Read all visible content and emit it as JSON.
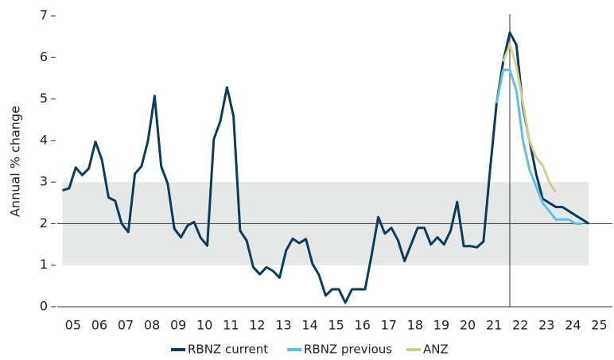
{
  "chart_data": {
    "type": "line",
    "y_label": "Annual % change",
    "x": [
      2005,
      2005.25,
      2005.5,
      2005.75,
      2006,
      2006.25,
      2006.5,
      2006.75,
      2007,
      2007.25,
      2007.5,
      2007.75,
      2008,
      2008.25,
      2008.5,
      2008.75,
      2009,
      2009.25,
      2009.5,
      2009.75,
      2010,
      2010.25,
      2010.5,
      2010.75,
      2011,
      2011.25,
      2011.5,
      2011.75,
      2012,
      2012.25,
      2012.5,
      2012.75,
      2013,
      2013.25,
      2013.5,
      2013.75,
      2014,
      2014.25,
      2014.5,
      2014.75,
      2015,
      2015.25,
      2015.5,
      2015.75,
      2016,
      2016.25,
      2016.5,
      2016.75,
      2017,
      2017.25,
      2017.5,
      2017.75,
      2018,
      2018.25,
      2018.5,
      2018.75,
      2019,
      2019.25,
      2019.5,
      2019.75,
      2020,
      2020.25,
      2020.5,
      2020.75,
      2021,
      2021.25,
      2021.5,
      2021.75,
      2022,
      2022.25,
      2022.5,
      2022.75,
      2023,
      2023.25,
      2023.5,
      2023.75,
      2024,
      2024.25,
      2024.5,
      2024.75,
      2025
    ],
    "series": [
      {
        "name": "RBNZ current",
        "color": "#0b3c5d",
        "values": [
          2.8,
          2.85,
          3.35,
          3.17,
          3.33,
          3.97,
          3.53,
          2.63,
          2.55,
          2.0,
          1.8,
          3.2,
          3.38,
          4.0,
          5.07,
          3.38,
          2.96,
          1.88,
          1.67,
          1.95,
          2.04,
          1.66,
          1.47,
          4.03,
          4.47,
          5.28,
          4.59,
          1.83,
          1.59,
          0.95,
          0.78,
          0.95,
          0.86,
          0.7,
          1.36,
          1.64,
          1.53,
          1.63,
          1.03,
          0.76,
          0.27,
          0.42,
          0.42,
          0.1,
          0.42,
          0.42,
          0.42,
          1.25,
          2.16,
          1.76,
          1.9,
          1.6,
          1.1,
          1.5,
          1.9,
          1.9,
          1.5,
          1.67,
          1.5,
          1.83,
          2.52,
          1.46,
          1.46,
          1.43,
          1.57,
          3.3,
          4.9,
          5.9,
          6.6,
          6.3,
          4.8,
          4.0,
          3.2,
          2.6,
          2.5,
          2.4,
          2.4,
          2.3,
          2.2,
          2.1,
          2.0
        ]
      },
      {
        "name": "RBNZ previous",
        "color": "#5bc2e7",
        "values": [
          null,
          null,
          null,
          null,
          null,
          null,
          null,
          null,
          null,
          null,
          null,
          null,
          null,
          null,
          null,
          null,
          null,
          null,
          null,
          null,
          null,
          null,
          null,
          null,
          null,
          null,
          null,
          null,
          null,
          null,
          null,
          null,
          null,
          null,
          null,
          null,
          null,
          null,
          null,
          null,
          null,
          null,
          null,
          null,
          null,
          null,
          null,
          null,
          null,
          null,
          null,
          null,
          null,
          null,
          null,
          null,
          null,
          null,
          null,
          null,
          null,
          null,
          null,
          null,
          null,
          null,
          4.9,
          5.7,
          5.7,
          5.2,
          4.0,
          3.3,
          2.9,
          2.5,
          2.3,
          2.1,
          2.1,
          2.1,
          2.0,
          2.0,
          null
        ]
      },
      {
        "name": "ANZ",
        "color": "#d3cf8c",
        "values": [
          null,
          null,
          null,
          null,
          null,
          null,
          null,
          null,
          null,
          null,
          null,
          null,
          null,
          null,
          null,
          null,
          null,
          null,
          null,
          null,
          null,
          null,
          null,
          null,
          null,
          null,
          null,
          null,
          null,
          null,
          null,
          null,
          null,
          null,
          null,
          null,
          null,
          null,
          null,
          null,
          null,
          null,
          null,
          null,
          null,
          null,
          null,
          null,
          null,
          null,
          null,
          null,
          null,
          null,
          null,
          null,
          null,
          null,
          null,
          null,
          null,
          null,
          null,
          null,
          null,
          null,
          null,
          5.9,
          6.3,
          5.8,
          4.9,
          4.0,
          3.6,
          3.4,
          3.0,
          2.75,
          null,
          null,
          null,
          null,
          null
        ]
      }
    ],
    "xlim": [
      2004.8,
      2025.9
    ],
    "xticks": [
      {
        "value": 2005.4,
        "label": "05"
      },
      {
        "value": 2006.4,
        "label": "06"
      },
      {
        "value": 2007.4,
        "label": "07"
      },
      {
        "value": 2008.4,
        "label": "08"
      },
      {
        "value": 2009.4,
        "label": "09"
      },
      {
        "value": 2010.4,
        "label": "10"
      },
      {
        "value": 2011.4,
        "label": "11"
      },
      {
        "value": 2012.4,
        "label": "12"
      },
      {
        "value": 2013.4,
        "label": "13"
      },
      {
        "value": 2014.4,
        "label": "14"
      },
      {
        "value": 2015.4,
        "label": "15"
      },
      {
        "value": 2016.4,
        "label": "16"
      },
      {
        "value": 2017.4,
        "label": "17"
      },
      {
        "value": 2018.4,
        "label": "18"
      },
      {
        "value": 2019.4,
        "label": "19"
      },
      {
        "value": 2020.4,
        "label": "20"
      },
      {
        "value": 2021.4,
        "label": "21"
      },
      {
        "value": 2022.4,
        "label": "22"
      },
      {
        "value": 2023.4,
        "label": "23"
      },
      {
        "value": 2024.4,
        "label": "24"
      },
      {
        "value": 2025.4,
        "label": "25"
      }
    ],
    "ylim": [
      0,
      7
    ],
    "yticks": [
      0,
      1,
      2,
      3,
      4,
      5,
      6,
      7
    ],
    "band": [
      1,
      3
    ],
    "hline": 2,
    "vline": 2022,
    "legend": "bottom"
  }
}
